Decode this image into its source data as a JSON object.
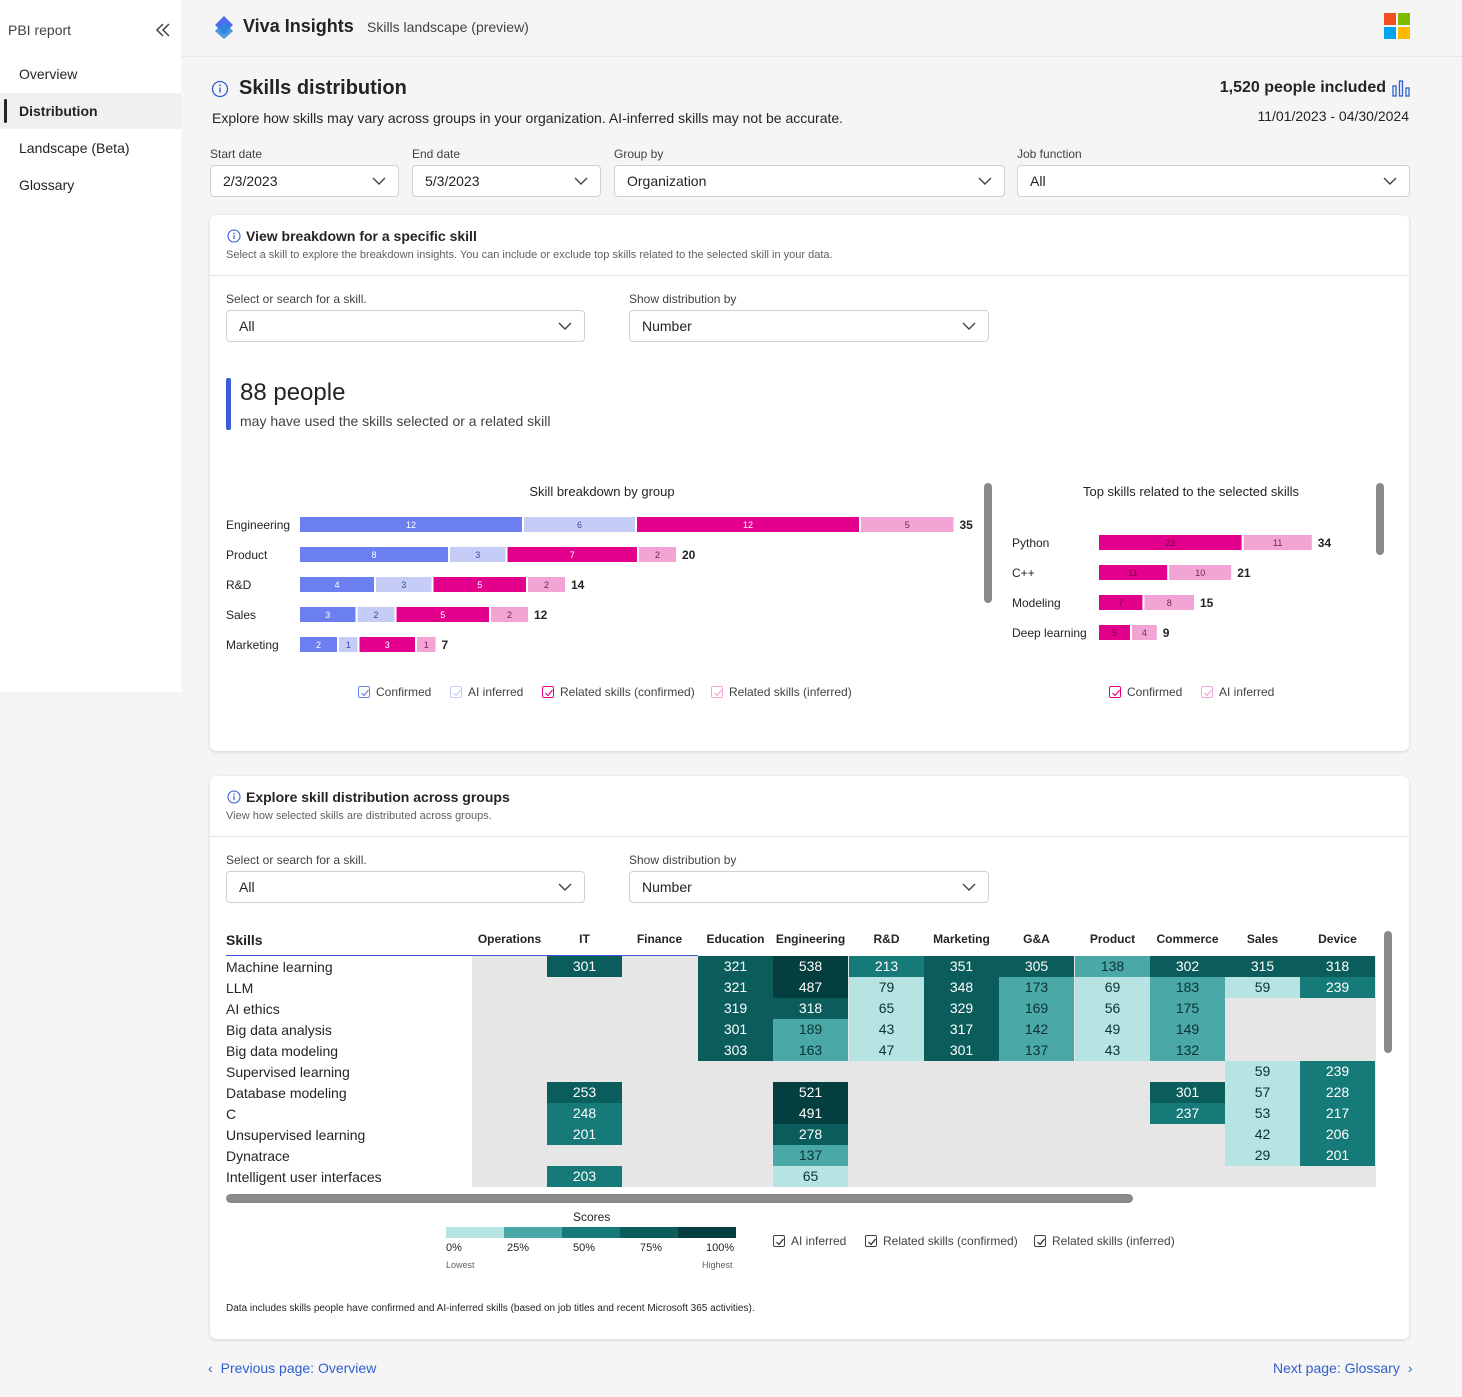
{
  "sidebar": {
    "title": "PBI report",
    "items": [
      {
        "label": "Overview"
      },
      {
        "label": "Distribution"
      },
      {
        "label": "Landscape (Beta)"
      },
      {
        "label": "Glossary"
      }
    ],
    "active_index": 1
  },
  "header": {
    "app_name": "Viva Insights",
    "subtitle": "Skills landscape (preview)"
  },
  "page": {
    "title": "Skills distribution",
    "description": "Explore how skills may vary across groups in your organization. AI-inferred skills may not be accurate.",
    "people_included": "1,520 people included",
    "date_range": "11/01/2023 - 04/30/2024"
  },
  "filters": {
    "start_date": {
      "label": "Start date",
      "value": "2/3/2023"
    },
    "end_date": {
      "label": "End date",
      "value": "5/3/2023"
    },
    "group_by": {
      "label": "Group by",
      "value": "Organization"
    },
    "job_function": {
      "label": "Job function",
      "value": "All"
    }
  },
  "breakdown_card": {
    "title": "View breakdown for a specific skill",
    "subtitle": "Select a skill to explore the breakdown insights. You can include or exclude top skills related to the selected skill in your data.",
    "skill_select": {
      "label": "Select or search for a skill.",
      "value": "All"
    },
    "distribution_select": {
      "label": "Show distribution by",
      "value": "Number"
    },
    "people_count": "88 people",
    "people_caption": "may have used the skills selected or a related skill",
    "legend": [
      "Confirmed",
      "AI inferred",
      "Related skills (confirmed)",
      "Related skills (inferred)"
    ],
    "related_legend": [
      "Confirmed",
      "AI inferred"
    ]
  },
  "distribution_card": {
    "title": "Explore skill distribution across groups",
    "subtitle": "View how selected skills are distributed across groups.",
    "skill_select": {
      "label": "Select or search for a skill.",
      "value": "All"
    },
    "distribution_select": {
      "label": "Show distribution by",
      "value": "Number"
    },
    "scores_title": "Scores",
    "scores_ticks": [
      "0%",
      "25%",
      "50%",
      "75%",
      "100%"
    ],
    "scores_low": "Lowest",
    "scores_high": "Highest",
    "legend": [
      "AI inferred",
      "Related skills (confirmed)",
      "Related skills (inferred)"
    ],
    "footnote": "Data includes skills people have confirmed and AI-inferred skills (based on job titles and recent Microsoft 365 activities)."
  },
  "nav": {
    "previous": "Previous page: Overview",
    "next": "Next page: Glossary"
  },
  "colors": {
    "confirmed": "#6b7ff0",
    "ai_inferred": "#c5cdf7",
    "related_confirmed": "#e3008c",
    "related_inferred": "#f2a5d4",
    "teal_light": "#b8e3e3",
    "teal_mid": "#4aa8a6",
    "teal_dark": "#157a78",
    "teal_darker": "#0b5d5c",
    "teal_darkest": "#053e3e",
    "empty": "#e6e6e6"
  },
  "chart_data": [
    {
      "type": "bar",
      "title": "Skill breakdown by group",
      "stacked": true,
      "orientation": "horizontal",
      "categories": [
        "Engineering",
        "Product",
        "R&D",
        "Sales",
        "Marketing"
      ],
      "series": [
        {
          "name": "Confirmed",
          "values": [
            12,
            8,
            4,
            3,
            2
          ]
        },
        {
          "name": "AI inferred",
          "values": [
            6,
            3,
            3,
            2,
            1
          ]
        },
        {
          "name": "Related skills (confirmed)",
          "values": [
            12,
            7,
            5,
            5,
            3
          ]
        },
        {
          "name": "Related skills (inferred)",
          "values": [
            5,
            2,
            2,
            2,
            1
          ]
        }
      ],
      "totals": [
        35,
        20,
        14,
        12,
        7
      ]
    },
    {
      "type": "bar",
      "title": "Top skills related to the selected skills",
      "stacked": true,
      "orientation": "horizontal",
      "categories": [
        "Python",
        "C++",
        "Modeling",
        "Deep learning"
      ],
      "series": [
        {
          "name": "Confirmed",
          "values": [
            23,
            11,
            7,
            5
          ]
        },
        {
          "name": "AI inferred",
          "values": [
            11,
            10,
            8,
            4
          ]
        }
      ],
      "totals": [
        34,
        21,
        15,
        9
      ]
    },
    {
      "type": "heatmap",
      "row_header": "Skills",
      "columns": [
        "Operations",
        "IT",
        "Finance",
        "Education",
        "Engineering",
        "R&D",
        "Marketing",
        "G&A",
        "Product",
        "Commerce",
        "Sales",
        "Device"
      ],
      "rows": [
        "Machine learning",
        "LLM",
        "AI ethics",
        "Big data analysis",
        "Big data modeling",
        "Supervised learning",
        "Database modeling",
        "C",
        "Unsupervised learning",
        "Dynatrace",
        "Intelligent user interfaces"
      ],
      "values": [
        [
          null,
          301,
          null,
          321,
          538,
          213,
          351,
          305,
          138,
          302,
          315,
          318
        ],
        [
          null,
          null,
          null,
          321,
          487,
          79,
          348,
          173,
          69,
          183,
          59,
          239
        ],
        [
          null,
          null,
          null,
          319,
          318,
          65,
          329,
          169,
          56,
          175,
          null,
          null
        ],
        [
          null,
          null,
          null,
          301,
          189,
          43,
          317,
          142,
          49,
          149,
          null,
          null
        ],
        [
          null,
          null,
          null,
          303,
          163,
          47,
          301,
          137,
          43,
          132,
          null,
          null
        ],
        [
          null,
          null,
          null,
          null,
          null,
          null,
          null,
          null,
          null,
          null,
          59,
          239
        ],
        [
          null,
          253,
          null,
          null,
          521,
          null,
          null,
          null,
          null,
          301,
          57,
          228
        ],
        [
          null,
          248,
          null,
          null,
          491,
          null,
          null,
          null,
          null,
          237,
          53,
          217
        ],
        [
          null,
          201,
          null,
          null,
          278,
          null,
          null,
          null,
          null,
          null,
          42,
          206
        ],
        [
          null,
          null,
          null,
          null,
          137,
          null,
          null,
          null,
          null,
          null,
          29,
          201
        ],
        [
          null,
          203,
          null,
          null,
          65,
          null,
          null,
          null,
          null,
          null,
          null,
          null
        ]
      ]
    }
  ]
}
